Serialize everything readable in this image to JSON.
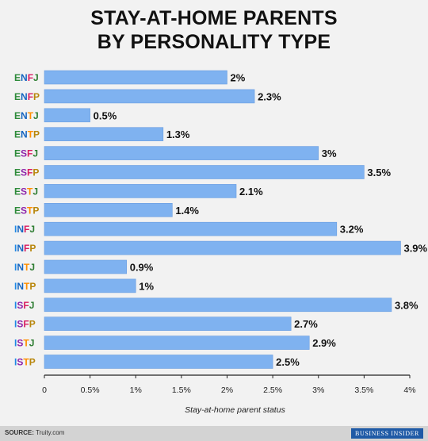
{
  "title_lines": [
    "STAY-AT-HOME PARENTS",
    "BY PERSONALITY TYPE"
  ],
  "footer": {
    "source_label": "SOURCE:",
    "source_text": "Truity.com",
    "brand": "BUSINESS INSIDER"
  },
  "colors": {
    "bar": "#7fb2f0",
    "bar_stroke": "#6a9de0",
    "axis": "#222222",
    "background": "#f2f2f2"
  },
  "chart_data": {
    "type": "bar",
    "orientation": "horizontal",
    "title": "STAY-AT-HOME PARENTS BY PERSONALITY TYPE",
    "xlabel": "Stay-at-home parent status",
    "ylabel": "",
    "xlim": [
      0,
      4
    ],
    "grid": false,
    "x_ticks": [
      "0",
      "0.5%",
      "1%",
      "1.5%",
      "2%",
      "2.5%",
      "3%",
      "3.5%",
      "4%"
    ],
    "categories": [
      "ENFJ",
      "ENFP",
      "ENTJ",
      "ENTP",
      "ESFJ",
      "ESFP",
      "ESTJ",
      "ESTP",
      "INFJ",
      "INFP",
      "INTJ",
      "INTP",
      "ISFJ",
      "ISFP",
      "ISTJ",
      "ISTP"
    ],
    "values": [
      2,
      2.3,
      0.5,
      1.3,
      3,
      3.5,
      2.1,
      1.4,
      3.2,
      3.9,
      0.9,
      1,
      3.8,
      2.7,
      2.9,
      2.5
    ],
    "data_labels": [
      "2%",
      "2.3%",
      "0.5%",
      "1.3%",
      "3%",
      "3.5%",
      "2.1%",
      "1.4%",
      "3.2%",
      "3.9%",
      "0.9%",
      "1%",
      "3.8%",
      "2.7%",
      "2.9%",
      "2.5%"
    ],
    "category_label_colors": [
      [
        "#2e8b3a",
        "#1565c0",
        "#d81b60",
        "#2e7d32"
      ],
      [
        "#2e8b3a",
        "#1565c0",
        "#d81b60",
        "#b8860b"
      ],
      [
        "#2e8b3a",
        "#1565c0",
        "#ff8f00",
        "#2e7d32"
      ],
      [
        "#2e8b3a",
        "#1565c0",
        "#ff8f00",
        "#b8860b"
      ],
      [
        "#2e8b3a",
        "#8e24aa",
        "#d81b60",
        "#2e7d32"
      ],
      [
        "#2e8b3a",
        "#8e24aa",
        "#d81b60",
        "#b8860b"
      ],
      [
        "#2e8b3a",
        "#8e24aa",
        "#ff8f00",
        "#2e7d32"
      ],
      [
        "#2e8b3a",
        "#8e24aa",
        "#ff8f00",
        "#b8860b"
      ],
      [
        "#1e88e5",
        "#1565c0",
        "#d81b60",
        "#2e7d32"
      ],
      [
        "#1e88e5",
        "#1565c0",
        "#d81b60",
        "#b8860b"
      ],
      [
        "#1e88e5",
        "#1565c0",
        "#ff8f00",
        "#2e7d32"
      ],
      [
        "#1e88e5",
        "#1565c0",
        "#ff8f00",
        "#b8860b"
      ],
      [
        "#1e88e5",
        "#8e24aa",
        "#d81b60",
        "#2e7d32"
      ],
      [
        "#1e88e5",
        "#8e24aa",
        "#d81b60",
        "#b8860b"
      ],
      [
        "#1e88e5",
        "#8e24aa",
        "#ff8f00",
        "#2e7d32"
      ],
      [
        "#1e88e5",
        "#8e24aa",
        "#ff8f00",
        "#b8860b"
      ]
    ]
  }
}
